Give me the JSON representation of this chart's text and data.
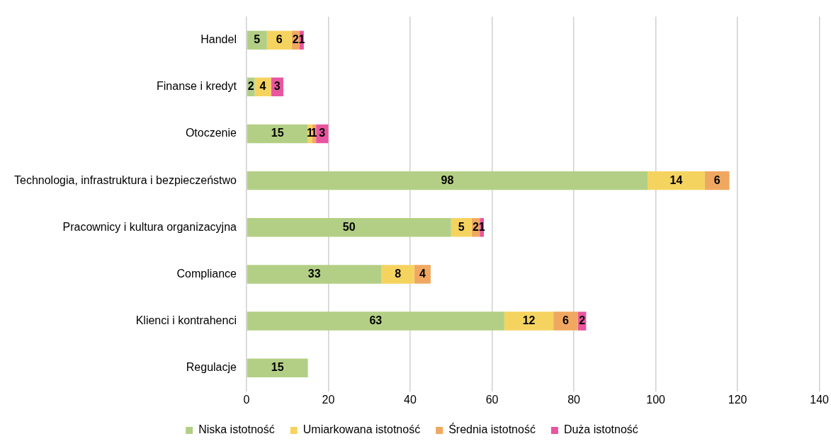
{
  "chart_data": {
    "type": "bar",
    "orientation": "horizontal",
    "stacked": true,
    "categories": [
      "Handel",
      "Finanse i kredyt",
      "Otoczenie",
      "Technologia, infrastruktura i bezpieczeństwo",
      "Pracownicy i kultura organizacyjna",
      "Compliance",
      "Klienci i kontrahenci",
      "Regulacje"
    ],
    "series": [
      {
        "name": "Niska istotność",
        "color": "#b3cf85",
        "values": [
          5,
          2,
          15,
          98,
          50,
          33,
          63,
          15
        ]
      },
      {
        "name": "Umiarkowana istotność",
        "color": "#f5d35f",
        "values": [
          6,
          4,
          1,
          14,
          5,
          8,
          12,
          null
        ]
      },
      {
        "name": "Średnia istotność",
        "color": "#f0a860",
        "values": [
          2,
          null,
          1,
          6,
          2,
          4,
          6,
          null
        ]
      },
      {
        "name": "Duża istotność",
        "color": "#e9559f",
        "values": [
          1,
          3,
          3,
          null,
          1,
          null,
          2,
          null
        ]
      }
    ],
    "xlim": [
      0,
      140
    ],
    "xticks": [
      0,
      20,
      40,
      60,
      80,
      100,
      120,
      140
    ],
    "grid": "x",
    "legend": "bottom",
    "data_labels": true
  }
}
